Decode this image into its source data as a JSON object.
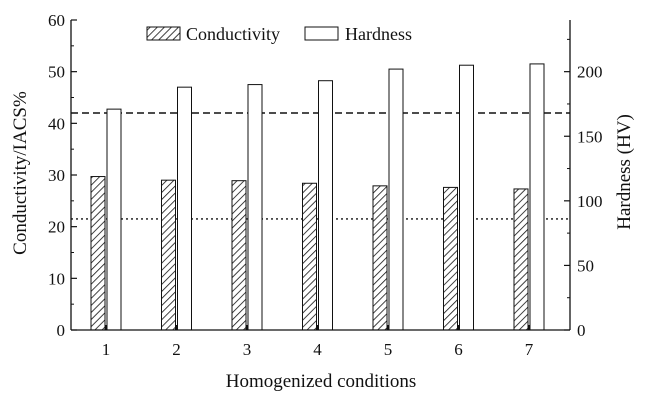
{
  "chart_data": {
    "type": "bar",
    "categories": [
      "1",
      "2",
      "3",
      "4",
      "5",
      "6",
      "7"
    ],
    "xlabel": "Homogenized conditions",
    "ylabel": "Conductivity/IACS%",
    "y2label": "Hardness (HV)",
    "ylim": [
      0,
      60
    ],
    "y2lim": [
      0,
      240
    ],
    "yticks": [
      0,
      10,
      20,
      30,
      40,
      50,
      60
    ],
    "y2ticks": [
      0,
      50,
      100,
      150,
      200
    ],
    "legend_placement": "top-center",
    "series": [
      {
        "name": "Conductivity",
        "axis": "left",
        "pattern": "hatched",
        "values": [
          29.7,
          29.0,
          28.9,
          28.4,
          27.9,
          27.6,
          27.3
        ]
      },
      {
        "name": "Hardness",
        "axis": "right",
        "pattern": "open",
        "values": [
          171,
          188,
          190,
          193,
          202,
          205,
          206
        ]
      }
    ],
    "reference_lines": [
      {
        "axis": "left",
        "value": 42,
        "style": "dashed"
      },
      {
        "axis": "left",
        "value": 21.5,
        "style": "dotted"
      }
    ],
    "grid": false
  }
}
